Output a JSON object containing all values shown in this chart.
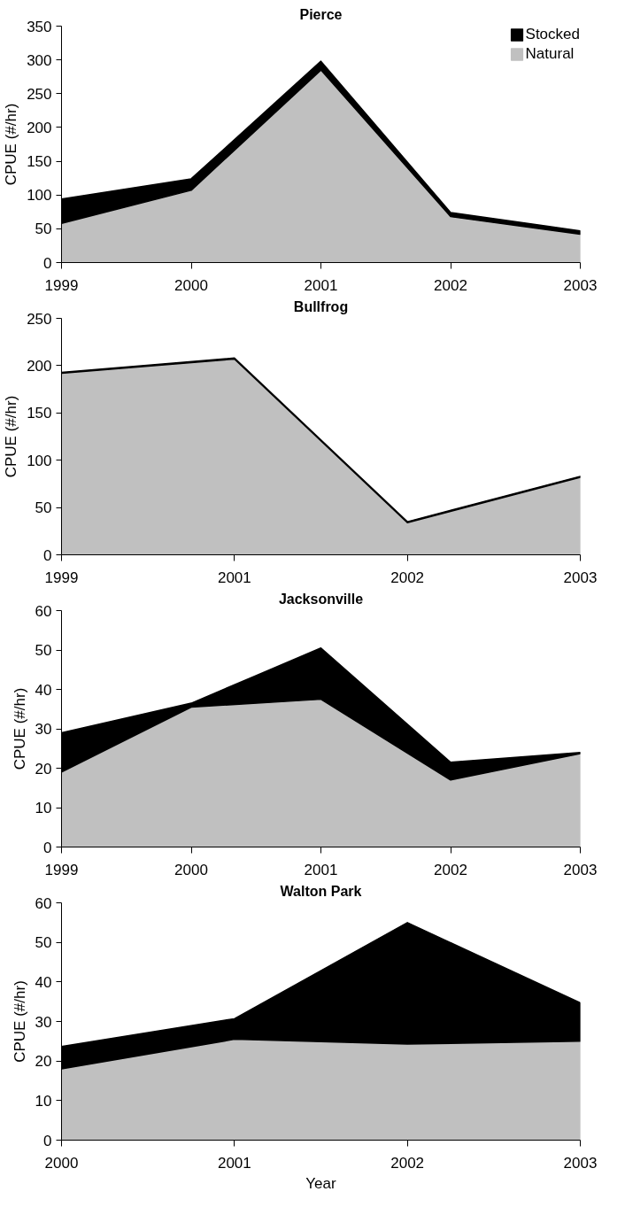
{
  "chart_data": [
    {
      "type": "area",
      "title": "Pierce",
      "ylabel": "CPUE (#/hr)",
      "categories": [
        "1999",
        "2000",
        "2001",
        "2002",
        "2003"
      ],
      "stacked": true,
      "ylim": [
        0,
        350
      ],
      "yticks": [
        0,
        50,
        100,
        150,
        200,
        250,
        300,
        350
      ],
      "grid": false,
      "legend": "top right",
      "series": [
        {
          "name": "Natural",
          "color": "#c0c0c0",
          "values": [
            58,
            107,
            285,
            68,
            42
          ]
        },
        {
          "name": "Stocked",
          "color": "#000000",
          "values": [
            36,
            17,
            13,
            6,
            5
          ]
        }
      ]
    },
    {
      "type": "area",
      "title": "Bullfrog",
      "ylabel": "CPUE (#/hr)",
      "categories": [
        "1999",
        "2001",
        "2002",
        "2003"
      ],
      "stacked": true,
      "ylim": [
        0,
        250
      ],
      "yticks": [
        0,
        50,
        100,
        150,
        200,
        250
      ],
      "grid": false,
      "series": [
        {
          "color": "#c0c0c0",
          "values": [
            192,
            207,
            34,
            82
          ]
        },
        {
          "color": "#000000",
          "values": [
            1,
            1,
            1,
            1
          ]
        }
      ]
    },
    {
      "type": "area",
      "title": "Jacksonville",
      "ylabel": "CPUE (#/hr)",
      "categories": [
        "1999",
        "2000",
        "2001",
        "2002",
        "2003"
      ],
      "stacked": true,
      "ylim": [
        0,
        60
      ],
      "yticks": [
        0,
        10,
        20,
        30,
        40,
        50,
        60
      ],
      "grid": false,
      "series": [
        {
          "color": "#c0c0c0",
          "values": [
            19,
            35.5,
            37.5,
            17,
            23.7
          ]
        },
        {
          "color": "#000000",
          "values": [
            10,
            1,
            13,
            4.5,
            0.3
          ]
        }
      ]
    },
    {
      "type": "area",
      "title": "Walton Park",
      "ylabel": "CPUE (#/hr)",
      "xlabel": "Year",
      "categories": [
        "2000",
        "2001",
        "2002",
        "2003"
      ],
      "stacked": true,
      "ylim": [
        0,
        60
      ],
      "yticks": [
        0,
        10,
        20,
        30,
        40,
        50,
        60
      ],
      "grid": false,
      "series": [
        {
          "color": "#c0c0c0",
          "values": [
            18,
            25.5,
            24.3,
            25
          ]
        },
        {
          "color": "#000000",
          "values": [
            5.7,
            5.2,
            30.7,
            9.7
          ]
        }
      ]
    }
  ]
}
